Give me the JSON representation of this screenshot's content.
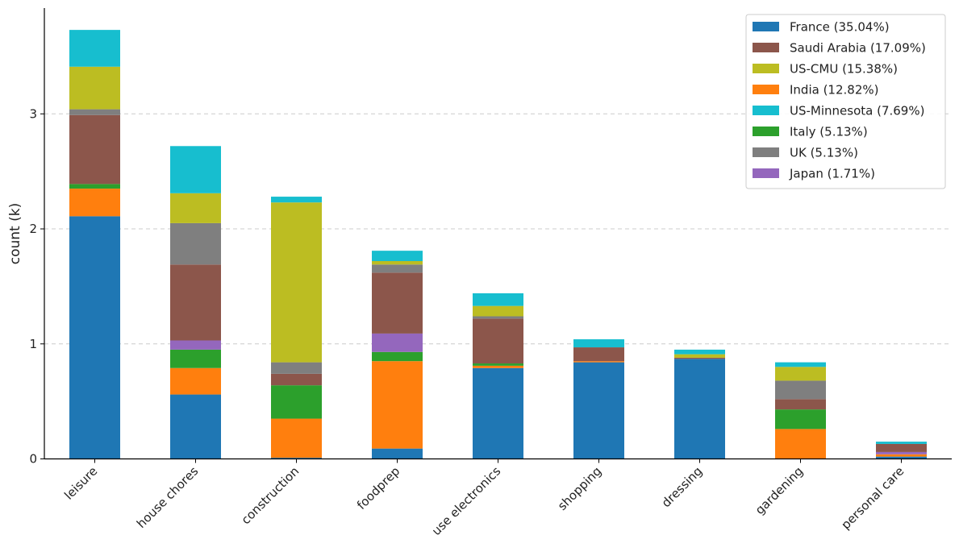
{
  "chart_data": {
    "type": "bar",
    "stacked": true,
    "title": "",
    "xlabel": "",
    "ylabel": "count (k)",
    "ylim": [
      0,
      3.92
    ],
    "yticks": [
      0,
      1,
      2,
      3
    ],
    "grid": "y-dashed",
    "legend_position": "top-right",
    "categories": [
      "leisure",
      "house chores",
      "construction",
      "foodprep",
      "use electronics",
      "shopping",
      "dressing",
      "gardening",
      "personal care"
    ],
    "series": [
      {
        "name": "France",
        "legend": "France (35.04%)",
        "color": "#1f77b4",
        "values": [
          2.11,
          0.56,
          0.01,
          0.09,
          0.79,
          0.84,
          0.87,
          0.0,
          0.02
        ]
      },
      {
        "name": "India",
        "legend": "India (12.82%)",
        "color": "#ff7f0e",
        "values": [
          0.24,
          0.23,
          0.34,
          0.76,
          0.02,
          0.01,
          0.0,
          0.26,
          0.02
        ]
      },
      {
        "name": "Italy",
        "legend": "Italy (5.13%)",
        "color": "#2ca02c",
        "values": [
          0.04,
          0.16,
          0.29,
          0.08,
          0.02,
          0.0,
          0.0,
          0.17,
          0.0
        ]
      },
      {
        "name": "Japan",
        "legend": "Japan (1.71%)",
        "color": "#9467bd",
        "values": [
          0.0,
          0.08,
          0.0,
          0.16,
          0.0,
          0.0,
          0.0,
          0.0,
          0.02
        ]
      },
      {
        "name": "Saudi Arabia",
        "legend": "Saudi Arabia (17.09%)",
        "color": "#8c564b",
        "values": [
          0.6,
          0.66,
          0.1,
          0.53,
          0.39,
          0.12,
          0.01,
          0.09,
          0.07
        ]
      },
      {
        "name": "UK",
        "legend": "UK (5.13%)",
        "color": "#7f7f7f",
        "values": [
          0.05,
          0.36,
          0.1,
          0.07,
          0.02,
          0.0,
          0.0,
          0.16,
          0.0
        ]
      },
      {
        "name": "US-CMU",
        "legend": "US-CMU (15.38%)",
        "color": "#bcbd22",
        "values": [
          0.37,
          0.26,
          1.39,
          0.03,
          0.09,
          0.0,
          0.03,
          0.12,
          0.0
        ]
      },
      {
        "name": "US-Minnesota",
        "legend": "US-Minnesota (7.69%)",
        "color": "#17becf",
        "values": [
          0.32,
          0.41,
          0.05,
          0.09,
          0.11,
          0.07,
          0.04,
          0.04,
          0.02
        ]
      }
    ],
    "legend_order": [
      "France",
      "Saudi Arabia",
      "US-CMU",
      "India",
      "US-Minnesota",
      "Italy",
      "UK",
      "Japan"
    ]
  }
}
